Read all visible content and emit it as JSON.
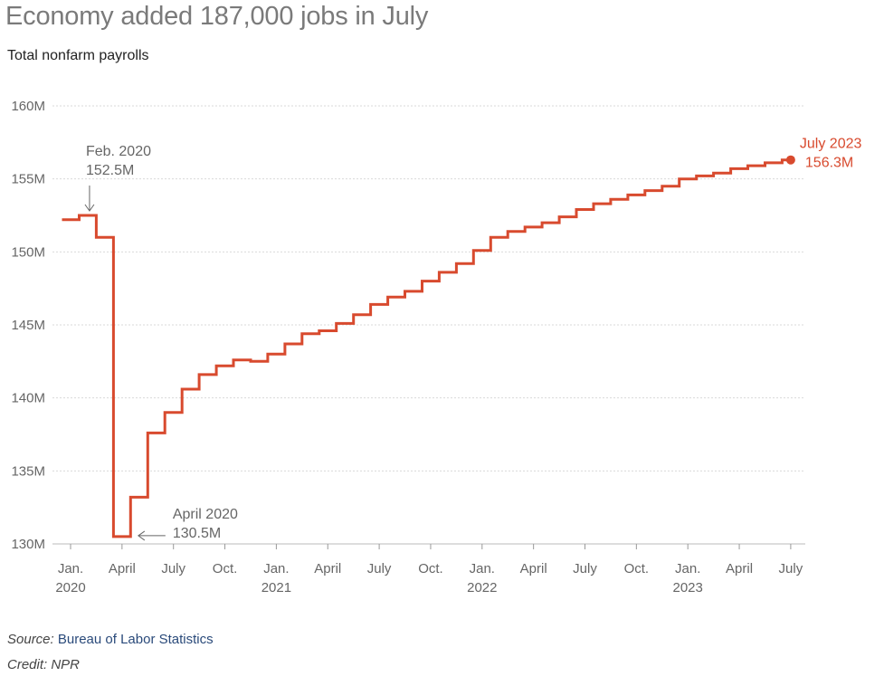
{
  "header": {
    "title": "Economy added 187,000 jobs in July",
    "subtitle": "Total nonfarm payrolls"
  },
  "footer": {
    "source_label": "Source:",
    "source_name": "Bureau of Labor Statistics",
    "credit": "Credit: NPR"
  },
  "colors": {
    "line": "#d84a2e",
    "grid": "#d9d9d9",
    "annotation": "#666666"
  },
  "chart_data": {
    "type": "line",
    "step": true,
    "title": "Economy added 187,000 jobs in July",
    "subtitle": "Total nonfarm payrolls",
    "xlabel": "",
    "ylabel": "",
    "ylim": [
      130,
      160
    ],
    "y_unit": "M",
    "yticks": [
      130,
      135,
      140,
      145,
      150,
      155,
      160
    ],
    "ytick_labels": [
      "130M",
      "135M",
      "140M",
      "145M",
      "150M",
      "155M",
      "160M"
    ],
    "grid": true,
    "xticks": [
      {
        "month": "2020-01",
        "line1": "Jan.",
        "line2": "2020"
      },
      {
        "month": "2020-04",
        "line1": "April",
        "line2": ""
      },
      {
        "month": "2020-07",
        "line1": "July",
        "line2": ""
      },
      {
        "month": "2020-10",
        "line1": "Oct.",
        "line2": ""
      },
      {
        "month": "2021-01",
        "line1": "Jan.",
        "line2": "2021"
      },
      {
        "month": "2021-04",
        "line1": "April",
        "line2": ""
      },
      {
        "month": "2021-07",
        "line1": "July",
        "line2": ""
      },
      {
        "month": "2021-10",
        "line1": "Oct.",
        "line2": ""
      },
      {
        "month": "2022-01",
        "line1": "Jan.",
        "line2": "2022"
      },
      {
        "month": "2022-04",
        "line1": "April",
        "line2": ""
      },
      {
        "month": "2022-07",
        "line1": "July",
        "line2": ""
      },
      {
        "month": "2022-10",
        "line1": "Oct.",
        "line2": ""
      },
      {
        "month": "2023-01",
        "line1": "Jan.",
        "line2": "2023"
      },
      {
        "month": "2023-04",
        "line1": "April",
        "line2": ""
      },
      {
        "month": "2023-07",
        "line1": "July",
        "line2": ""
      }
    ],
    "series": [
      {
        "name": "Total nonfarm payrolls",
        "x": [
          "2020-01",
          "2020-02",
          "2020-03",
          "2020-04",
          "2020-05",
          "2020-06",
          "2020-07",
          "2020-08",
          "2020-09",
          "2020-10",
          "2020-11",
          "2020-12",
          "2021-01",
          "2021-02",
          "2021-03",
          "2021-04",
          "2021-05",
          "2021-06",
          "2021-07",
          "2021-08",
          "2021-09",
          "2021-10",
          "2021-11",
          "2021-12",
          "2022-01",
          "2022-02",
          "2022-03",
          "2022-04",
          "2022-05",
          "2022-06",
          "2022-07",
          "2022-08",
          "2022-09",
          "2022-10",
          "2022-11",
          "2022-12",
          "2023-01",
          "2023-02",
          "2023-03",
          "2023-04",
          "2023-05",
          "2023-06",
          "2023-07"
        ],
        "values": [
          152.2,
          152.5,
          151.0,
          130.5,
          133.2,
          137.6,
          139.0,
          140.6,
          141.6,
          142.2,
          142.6,
          142.5,
          143.0,
          143.7,
          144.4,
          144.6,
          145.1,
          145.7,
          146.4,
          146.9,
          147.3,
          148.0,
          148.6,
          149.2,
          150.1,
          151.0,
          151.4,
          151.7,
          152.0,
          152.4,
          152.9,
          153.3,
          153.6,
          153.9,
          154.2,
          154.5,
          155.0,
          155.2,
          155.4,
          155.7,
          155.9,
          156.1,
          156.3
        ]
      }
    ],
    "annotations": [
      {
        "month": "2020-02",
        "line1": "Feb. 2020",
        "line2": "152.5M"
      },
      {
        "month": "2020-04",
        "line1": "April 2020",
        "line2": "130.5M"
      },
      {
        "month": "2023-07",
        "line1": "July 2023",
        "line2": "156.3M"
      }
    ]
  }
}
